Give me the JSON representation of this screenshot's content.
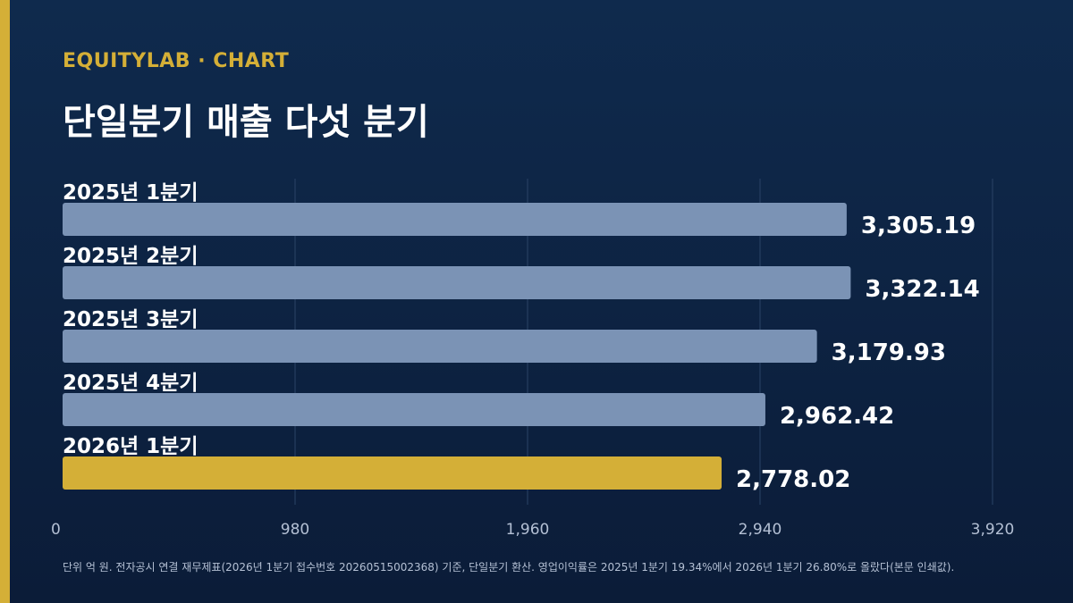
{
  "header": {
    "brand": "EQUITYLAB · CHART",
    "title": "단일분기 매출 다섯 분기"
  },
  "footnote": "단위 억 원. 전자공시 연결 재무제표(2026년 1분기 접수번호 20260515002368) 기준, 단일분기 환산. 영업이익률은 2025년 1분기 19.34%에서 2026년 1분기 26.80%로 올랐다(본문 인쇄값).",
  "colors": {
    "accent": "#d4af37",
    "bar": "#7b93b5",
    "highlight_bar": "#d4af37",
    "background": "#0f2a4d"
  },
  "chart_data": {
    "type": "bar",
    "orientation": "horizontal",
    "categories": [
      "2025년 1분기",
      "2025년 2분기",
      "2025년 3분기",
      "2025년 4분기",
      "2026년 1분기"
    ],
    "values": [
      3305.19,
      3322.14,
      3179.93,
      2962.42,
      2778.02
    ],
    "value_labels": [
      "3,305.19",
      "3,322.14",
      "3,179.93",
      "2,962.42",
      "2,778.02"
    ],
    "highlight_index": 4,
    "xlim": [
      0,
      3920
    ],
    "x_ticks": [
      0,
      980,
      1960,
      2940,
      3920
    ],
    "x_tick_labels": [
      "0",
      "980",
      "1,960",
      "2,940",
      "3,920"
    ],
    "grid": true
  }
}
